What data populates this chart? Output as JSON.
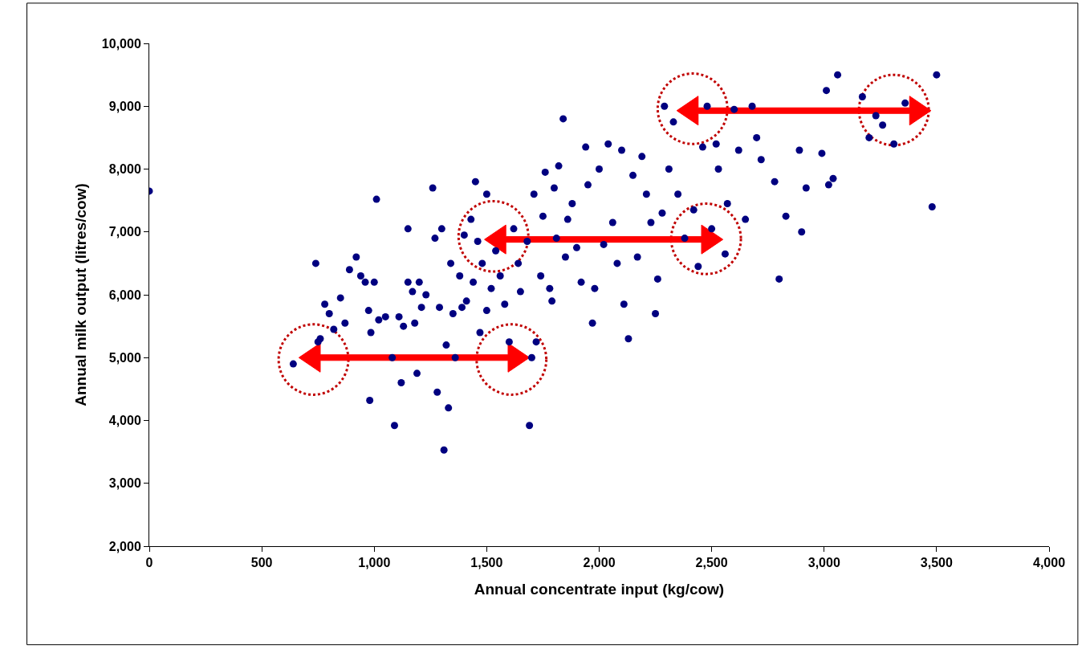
{
  "chart_data": {
    "type": "scatter",
    "xlabel": "Annual concentrate input (kg/cow)",
    "ylabel": "Annual milk output (litres/cow)",
    "xlim": [
      0,
      4000
    ],
    "ylim": [
      2000,
      10000
    ],
    "xticks": [
      {
        "value": 0,
        "label": "0"
      },
      {
        "value": 500,
        "label": "500"
      },
      {
        "value": 1000,
        "label": "1,000"
      },
      {
        "value": 1500,
        "label": "1,500"
      },
      {
        "value": 2000,
        "label": "2,000"
      },
      {
        "value": 2500,
        "label": "2,500"
      },
      {
        "value": 3000,
        "label": "3,000"
      },
      {
        "value": 3500,
        "label": "3,500"
      },
      {
        "value": 4000,
        "label": "4,000"
      }
    ],
    "yticks": [
      {
        "value": 2000,
        "label": "2,000"
      },
      {
        "value": 3000,
        "label": "3,000"
      },
      {
        "value": 4000,
        "label": "4,000"
      },
      {
        "value": 5000,
        "label": "5,000"
      },
      {
        "value": 6000,
        "label": "6,000"
      },
      {
        "value": 7000,
        "label": "7,000"
      },
      {
        "value": 8000,
        "label": "8,000"
      },
      {
        "value": 9000,
        "label": "9,000"
      },
      {
        "value": 10000,
        "label": "10,000"
      }
    ],
    "grid": false,
    "marker": "circle",
    "series": [
      {
        "color": "#000080",
        "x": [
          0,
          640,
          740,
          750,
          760,
          780,
          800,
          820,
          850,
          870,
          890,
          920,
          940,
          960,
          975,
          980,
          985,
          1010,
          1000,
          1020,
          1050,
          1080,
          1090,
          1110,
          1130,
          1120,
          1150,
          1150,
          1170,
          1180,
          1190,
          1200,
          1210,
          1230,
          1260,
          1270,
          1280,
          1290,
          1300,
          1310,
          1320,
          1330,
          1340,
          1350,
          1360,
          1380,
          1390,
          1400,
          1410,
          1430,
          1440,
          1450,
          1460,
          1470,
          1480,
          1500,
          1500,
          1520,
          1540,
          1560,
          1580,
          1600,
          1620,
          1640,
          1650,
          1680,
          1690,
          1700,
          1710,
          1720,
          1740,
          1750,
          1760,
          1780,
          1790,
          1800,
          1810,
          1820,
          1840,
          1850,
          1860,
          1880,
          1900,
          1920,
          1940,
          1950,
          1970,
          1980,
          2000,
          2020,
          2040,
          2060,
          2080,
          2100,
          2110,
          2130,
          2150,
          2170,
          2190,
          2210,
          2230,
          2250,
          2260,
          2280,
          2290,
          2310,
          2330,
          2350,
          2380,
          2420,
          2440,
          2460,
          2480,
          2500,
          2520,
          2530,
          2560,
          2570,
          2600,
          2620,
          2650,
          2680,
          2700,
          2720,
          2780,
          2800,
          2830,
          2890,
          2900,
          2920,
          2990,
          3010,
          3020,
          3040,
          3060,
          3170,
          3200,
          3230,
          3260,
          3310,
          3360,
          3480,
          3500
        ],
        "values": [
          7650,
          4900,
          6500,
          5250,
          5300,
          5850,
          5700,
          5450,
          5950,
          5550,
          6400,
          6600,
          6300,
          6200,
          5750,
          4320,
          5400,
          7520,
          6200,
          5600,
          5650,
          5000,
          3920,
          5650,
          5500,
          4600,
          7050,
          6200,
          6050,
          5550,
          4750,
          6200,
          5800,
          6000,
          7700,
          6900,
          4450,
          5800,
          7050,
          3530,
          5200,
          4200,
          6500,
          5700,
          5000,
          6300,
          5800,
          6950,
          5900,
          7200,
          6200,
          7800,
          6850,
          5400,
          6500,
          7600,
          5750,
          6100,
          6700,
          6300,
          5850,
          5250,
          7050,
          6500,
          6050,
          6850,
          3920,
          5000,
          7600,
          5250,
          6300,
          7250,
          7950,
          6100,
          5900,
          7700,
          6900,
          8050,
          8800,
          6600,
          7200,
          7450,
          6750,
          6200,
          8350,
          7750,
          5550,
          6100,
          8000,
          6800,
          8400,
          7150,
          6500,
          8300,
          5850,
          5300,
          7900,
          6600,
          8200,
          7600,
          7150,
          5700,
          6250,
          7300,
          9000,
          8000,
          8750,
          7600,
          6900,
          7350,
          6450,
          8350,
          9000,
          7050,
          8400,
          8000,
          6650,
          7450,
          8950,
          8300,
          7200,
          9000,
          8500,
          8150,
          7800,
          6250,
          7250,
          8300,
          7000,
          7700,
          8250,
          9250,
          7750,
          7850,
          9500,
          9150,
          8500,
          8850,
          8700,
          8400,
          9050,
          7400,
          9500
        ]
      }
    ]
  }
}
